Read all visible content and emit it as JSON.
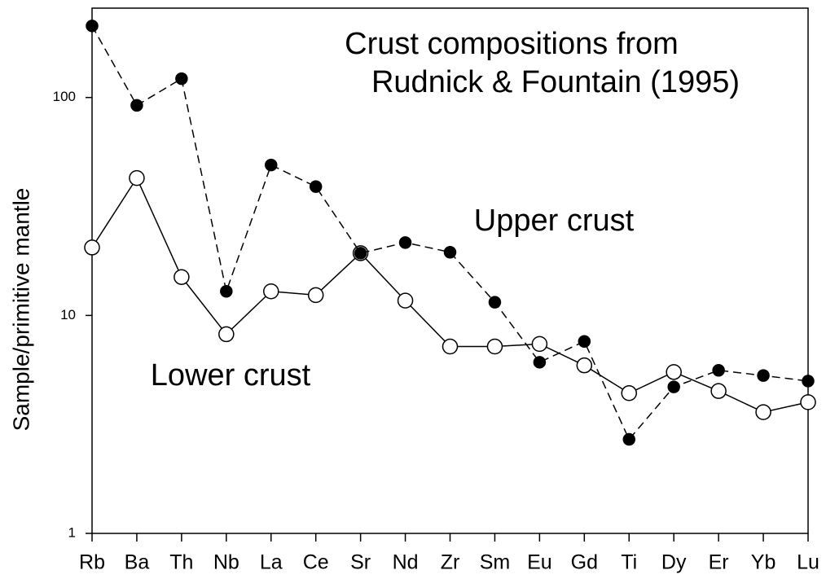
{
  "chart_data": {
    "type": "line",
    "title": [
      "Crust compositions from",
      "Rudnick & Fountain (1995)"
    ],
    "y_label": "Sample/primitive mantle",
    "categories": [
      "Rb",
      "Ba",
      "Th",
      "Nb",
      "La",
      "Ce",
      "Sr",
      "Nd",
      "Zr",
      "Sm",
      "Eu",
      "Gd",
      "Ti",
      "Dy",
      "Er",
      "Yb",
      "Lu"
    ],
    "series": [
      {
        "name": "Upper crust",
        "color": "#000000",
        "line_style": "dashed",
        "marker_fill": "#000000",
        "values": [
          213,
          92,
          122,
          12.9,
          49,
          39,
          19.3,
          21.6,
          19.5,
          11.5,
          6.1,
          7.6,
          2.7,
          4.7,
          5.6,
          5.3,
          5.0
        ]
      },
      {
        "name": "Lower crust",
        "color": "#000000",
        "line_style": "solid",
        "marker_fill": "#ffffff",
        "values": [
          20.5,
          42.7,
          15,
          8.2,
          12.9,
          12.4,
          19.3,
          11.7,
          7.2,
          7.2,
          7.4,
          5.9,
          4.4,
          5.5,
          4.5,
          3.6,
          4.0
        ]
      }
    ],
    "ylim": [
      1,
      257
    ],
    "yticks": [
      1,
      10,
      100
    ],
    "log_y": true,
    "grid": false
  }
}
